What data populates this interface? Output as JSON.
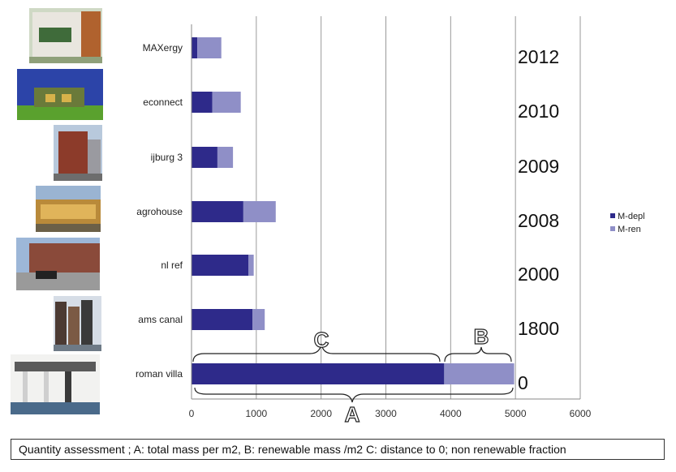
{
  "caption": "Quantity assessment  ; A: total mass per m2,   B: renewable mass /m2   C: distance to 0; non renewable fraction",
  "brace_labels": {
    "c": "C",
    "b": "B",
    "a": "A"
  },
  "chart_data": {
    "type": "bar",
    "orientation": "horizontal",
    "stacked": true,
    "categories": [
      "MAXergy",
      "econnect",
      "ijburg 3",
      "agrohouse",
      "nl ref",
      "ams canal",
      "roman villa"
    ],
    "years": [
      "2012",
      "2010",
      "2009",
      "2008",
      "2000",
      "1800",
      "0"
    ],
    "series": [
      {
        "name": "M-depl",
        "color": "#2e2a8a",
        "values": [
          90,
          320,
          400,
          800,
          880,
          940,
          3900
        ]
      },
      {
        "name": "M-ren",
        "color": "#8f8fc7",
        "values": [
          370,
          440,
          240,
          500,
          80,
          190,
          1080
        ]
      }
    ],
    "xlim": [
      0,
      6000
    ],
    "xticks": [
      "0",
      "1000",
      "2000",
      "3000",
      "4000",
      "5000",
      "6000"
    ],
    "grid": true,
    "legend": "right"
  }
}
